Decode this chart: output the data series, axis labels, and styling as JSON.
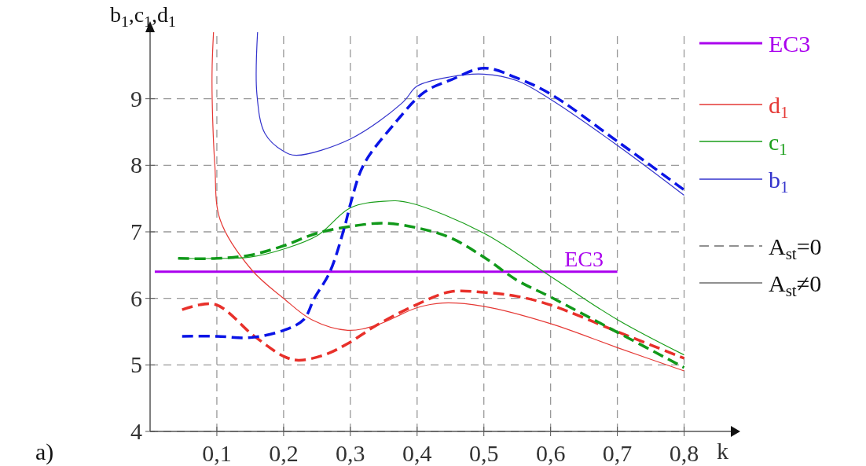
{
  "chart_data": {
    "type": "line",
    "xlabel": "k",
    "ylabel": "b$_{1}$,c$_{1}$,d$_{1}$",
    "xlim": [
      0,
      0.87
    ],
    "ylim": [
      4,
      10
    ],
    "xticks": [
      {
        "value": 0.1,
        "label": "0,1"
      },
      {
        "value": 0.2,
        "label": "0,2"
      },
      {
        "value": 0.3,
        "label": "0,3"
      },
      {
        "value": 0.4,
        "label": "0,4"
      },
      {
        "value": 0.5,
        "label": "0,5"
      },
      {
        "value": 0.6,
        "label": "0,6"
      },
      {
        "value": 0.7,
        "label": "0,7"
      },
      {
        "value": 0.8,
        "label": "0,8"
      }
    ],
    "yticks": [
      4,
      5,
      6,
      7,
      8,
      9
    ],
    "grid": true,
    "legend": "right",
    "marker": "none",
    "series": [
      {
        "name": "EC3",
        "color": "#aa00ee",
        "line_style": "solid",
        "x": [
          0.007,
          0.7
        ],
        "values": [
          6.4,
          6.4
        ]
      },
      {
        "name": "d$_{1}$",
        "color": "#e53935",
        "line_style": "solid",
        "x": [
          0.095,
          0.093,
          0.093,
          0.097,
          0.105,
          0.152,
          0.2,
          0.242,
          0.296,
          0.34,
          0.4,
          0.438,
          0.5,
          0.6,
          0.7,
          0.8
        ],
        "values": [
          10.0,
          9.5,
          9.0,
          8.0,
          7.18,
          6.43,
          6.0,
          5.68,
          5.52,
          5.6,
          5.86,
          5.93,
          5.88,
          5.62,
          5.26,
          4.91
        ]
      },
      {
        "name": "c$_{1}$",
        "color": "#1a9e1a",
        "line_style": "solid",
        "x": [
          0.042,
          0.1,
          0.15,
          0.2,
          0.25,
          0.3,
          0.35,
          0.387,
          0.5,
          0.6,
          0.7,
          0.8
        ],
        "values": [
          6.6,
          6.6,
          6.62,
          6.74,
          6.94,
          7.36,
          7.46,
          7.44,
          6.98,
          6.33,
          5.68,
          5.15
        ]
      },
      {
        "name": "b$_{1}$",
        "color": "#3333cc",
        "line_style": "solid",
        "x": [
          0.161,
          0.16,
          0.172,
          0.2,
          0.219,
          0.301,
          0.379,
          0.4,
          0.45,
          0.5,
          0.55,
          0.6,
          0.7,
          0.8
        ],
        "values": [
          10.0,
          9.07,
          8.48,
          8.21,
          8.15,
          8.4,
          8.95,
          9.19,
          9.33,
          9.37,
          9.27,
          8.99,
          8.3,
          7.55
        ]
      },
      {
        "color": "#e8302a",
        "line_style": "dashed",
        "x": [
          0.048,
          0.097,
          0.155,
          0.2,
          0.222,
          0.261,
          0.296,
          0.34,
          0.4,
          0.45,
          0.5,
          0.55,
          0.6,
          0.7,
          0.8
        ],
        "values": [
          5.83,
          5.91,
          5.44,
          5.13,
          5.07,
          5.15,
          5.32,
          5.6,
          5.91,
          6.1,
          6.09,
          6.03,
          5.9,
          5.5,
          5.1
        ]
      },
      {
        "color": "#11991a",
        "line_style": "dashed",
        "x": [
          0.042,
          0.1,
          0.15,
          0.2,
          0.25,
          0.3,
          0.35,
          0.4,
          0.45,
          0.5,
          0.55,
          0.6,
          0.7,
          0.8
        ],
        "values": [
          6.6,
          6.6,
          6.65,
          6.79,
          6.98,
          7.08,
          7.13,
          7.06,
          6.91,
          6.62,
          6.27,
          6.02,
          5.49,
          4.96
        ]
      },
      {
        "color": "#0a14e6",
        "line_style": "dashed",
        "x": [
          0.048,
          0.1,
          0.15,
          0.2,
          0.23,
          0.246,
          0.269,
          0.291,
          0.301,
          0.32,
          0.364,
          0.411,
          0.45,
          0.5,
          0.55,
          0.6,
          0.7,
          0.8
        ],
        "values": [
          5.43,
          5.43,
          5.41,
          5.52,
          5.68,
          6.0,
          6.39,
          7.06,
          7.45,
          8.01,
          8.6,
          9.1,
          9.28,
          9.46,
          9.31,
          9.07,
          8.36,
          7.63
        ]
      }
    ],
    "annotations": [
      {
        "text": "EC3",
        "x": 0.65,
        "y": 6.4
      },
      "a)",
      "A$_{st}$=0",
      "A$_{st}$≠0"
    ]
  }
}
